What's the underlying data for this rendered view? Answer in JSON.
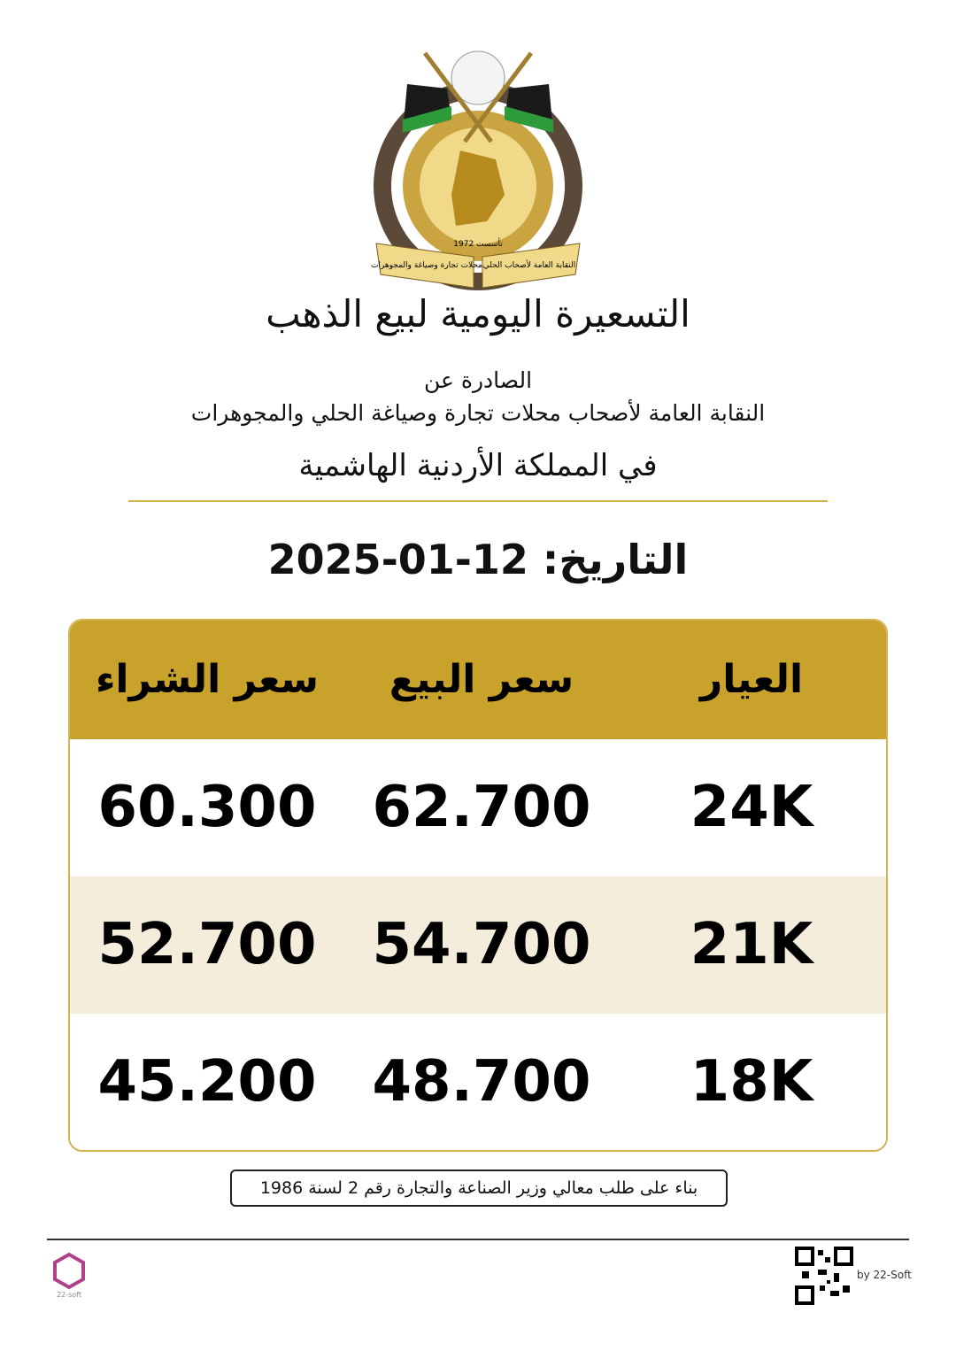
{
  "logo": {
    "ribbon_left": "محلات تجارة وصياغة والمجوهرات",
    "ribbon_right": "النقابة العامة لأصحاب الحلي",
    "founded": "تأسست 1972"
  },
  "header": {
    "title": "التسعيرة اليومية لبيع الذهب",
    "issued_by": "الصادرة عن",
    "organization": "النقابة العامة لأصحاب محلات تجارة وصياغة الحلي والمجوهرات",
    "country": "في المملكة الأردنية الهاشمية"
  },
  "date": {
    "label": "التاريخ:",
    "value": "12-01-2025"
  },
  "table": {
    "columns": [
      "العيار",
      "سعر البيع",
      "سعر الشراء"
    ],
    "rows": [
      [
        "24K",
        "62.700",
        "60.300"
      ],
      [
        "21K",
        "54.700",
        "52.700"
      ],
      [
        "18K",
        "48.700",
        "45.200"
      ]
    ]
  },
  "note": "بناء على طلب معالي وزير الصناعة والتجارة رقم 2 لسنة 1986",
  "footer": {
    "brand": "22-soft",
    "credit": "by 22-Soft"
  }
}
